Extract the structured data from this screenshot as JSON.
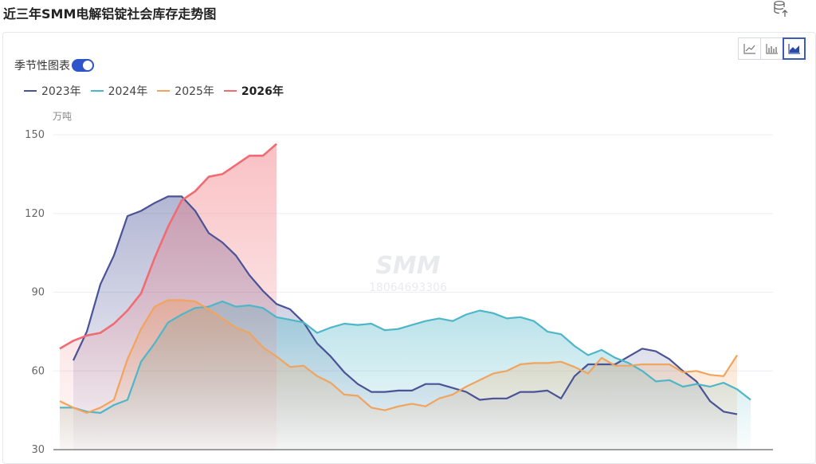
{
  "page": {
    "title": "近三年SMM电解铝锭社会库存走势图"
  },
  "icons": {
    "export": "database-export-icon",
    "line": "line-chart-icon",
    "bar": "bar-chart-icon",
    "area": "area-chart-icon"
  },
  "controls": {
    "seasonal_label": "季节性图表",
    "seasonal_on": true,
    "active_chart_type": "area"
  },
  "watermark": {
    "brand": "SMM",
    "phone": "18064693306"
  },
  "chart_data": {
    "type": "area",
    "unit": "万吨",
    "ylim": [
      30,
      150
    ],
    "yticks": [
      "150",
      "120",
      "90",
      "60",
      "30"
    ],
    "grid": true,
    "legend_position": "top-left",
    "n_points": 53,
    "series": [
      {
        "name": "2023年",
        "color": "#4a5396",
        "start": 1,
        "values": [
          64,
          75,
          93,
          104,
          119,
          121,
          124,
          126.5,
          126.5,
          121,
          112.5,
          109,
          104,
          96.5,
          90.5,
          85.5,
          83.5,
          78.5,
          70.5,
          65.5,
          59.5,
          55,
          52,
          52,
          52.5,
          52.5,
          55,
          55,
          53.5,
          52,
          49,
          49.5,
          49.5,
          52,
          52,
          52.5,
          49.5,
          58,
          62.5,
          62.5,
          62.5,
          65.5,
          68.5,
          67.5,
          64.5,
          60,
          56,
          48.5,
          44.5,
          43.5
        ]
      },
      {
        "name": "2024年",
        "color": "#4db6c8",
        "start": 0,
        "values": [
          46,
          46,
          44.5,
          44,
          47,
          49,
          63.5,
          70.5,
          78.5,
          81.5,
          84,
          84.5,
          86.5,
          84.5,
          85,
          84,
          80.5,
          79.5,
          78.5,
          74.5,
          76.5,
          78,
          77.5,
          78,
          75.5,
          76,
          77.5,
          79,
          80,
          79,
          81.5,
          83,
          82,
          80,
          80.5,
          79,
          75,
          74,
          69.5,
          66,
          68,
          65,
          63,
          60,
          56,
          56.5,
          54,
          55,
          54,
          55.5,
          53,
          49
        ]
      },
      {
        "name": "2025年",
        "color": "#f0a45e",
        "start": 0,
        "values": [
          48.5,
          46,
          44,
          46,
          49,
          64.5,
          76,
          84.5,
          87,
          87,
          86.5,
          83.5,
          80,
          76.5,
          74.5,
          69,
          65.5,
          61.5,
          62,
          58,
          55.5,
          51,
          50.5,
          46,
          45,
          46.5,
          47.5,
          46.5,
          49.5,
          51,
          54,
          56.5,
          59,
          60,
          62.5,
          63,
          63,
          63.5,
          61.5,
          59,
          65,
          62,
          62,
          62.5,
          62.5,
          62.5,
          59.5,
          60,
          58.5,
          58,
          66
        ]
      },
      {
        "name": "2026年",
        "color": "#f06b72",
        "start": 0,
        "bold": true,
        "values": [
          68.5,
          71.5,
          73.5,
          74.5,
          78,
          83,
          89.5,
          103,
          115,
          125,
          128.5,
          134,
          135,
          138.5,
          142,
          142,
          146.5
        ]
      }
    ]
  }
}
